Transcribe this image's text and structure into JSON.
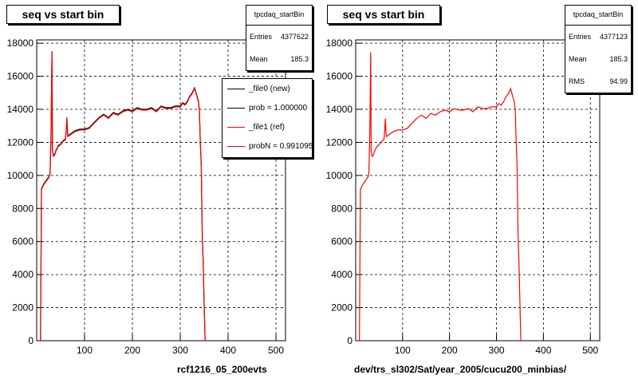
{
  "chart_data": [
    {
      "type": "line",
      "title": "seq vs start bin",
      "xlabel": "rcf1216_05_200evts",
      "ylabel": "",
      "xlim": [
        0,
        520
      ],
      "ylim": [
        0,
        18200
      ],
      "x_ticks": [
        100,
        200,
        300,
        400,
        500
      ],
      "y_ticks": [
        0,
        2000,
        4000,
        6000,
        8000,
        10000,
        12000,
        14000,
        16000,
        18000
      ],
      "grid": true,
      "series": [
        {
          "name": "_file0 (new)",
          "color": "#000000",
          "x": [
            8,
            10,
            15,
            20,
            25,
            28,
            30,
            32,
            33,
            35,
            38,
            40,
            45,
            50,
            55,
            60,
            62,
            63,
            65,
            70,
            75,
            80,
            90,
            100,
            110,
            120,
            130,
            140,
            150,
            160,
            170,
            180,
            190,
            200,
            210,
            220,
            230,
            240,
            250,
            260,
            270,
            280,
            290,
            300,
            305,
            310,
            315,
            320,
            325,
            330,
            335,
            338,
            340,
            342,
            344,
            346,
            348,
            350,
            352
          ],
          "y": [
            0,
            9200,
            9500,
            9700,
            9900,
            10100,
            12600,
            17500,
            11500,
            11200,
            11300,
            11500,
            11800,
            11900,
            12100,
            12200,
            12800,
            13500,
            12400,
            12500,
            12600,
            12700,
            12800,
            12800,
            12900,
            13200,
            13500,
            13700,
            13500,
            13800,
            13700,
            13900,
            14000,
            13900,
            14100,
            14000,
            14000,
            14100,
            13900,
            14200,
            14100,
            14100,
            14200,
            14200,
            14400,
            14300,
            14500,
            14800,
            15000,
            15300,
            14800,
            14500,
            14000,
            12000,
            10600,
            6500,
            4700,
            2200,
            0
          ]
        },
        {
          "name": "_file1 (ref)",
          "color": "#ff0000",
          "x": [
            8,
            10,
            15,
            20,
            25,
            28,
            30,
            32,
            33,
            35,
            38,
            40,
            45,
            50,
            55,
            60,
            62,
            63,
            65,
            70,
            75,
            80,
            90,
            100,
            110,
            120,
            130,
            140,
            150,
            160,
            170,
            180,
            190,
            200,
            210,
            220,
            230,
            240,
            250,
            260,
            270,
            280,
            290,
            300,
            305,
            310,
            315,
            320,
            325,
            330,
            335,
            338,
            340,
            342,
            344,
            346,
            348,
            350,
            352
          ],
          "y": [
            0,
            9150,
            9450,
            9650,
            9850,
            10050,
            12550,
            17450,
            11450,
            11150,
            11250,
            11450,
            11750,
            11850,
            12050,
            12150,
            12750,
            13450,
            12350,
            12450,
            12550,
            12650,
            12750,
            12750,
            12850,
            13150,
            13450,
            13650,
            13450,
            13750,
            13650,
            13850,
            13950,
            13850,
            14050,
            13950,
            13950,
            14050,
            13850,
            14150,
            14050,
            14050,
            14150,
            14150,
            14350,
            14250,
            14450,
            14750,
            14950,
            15250,
            14750,
            14450,
            13950,
            11950,
            10550,
            6450,
            4650,
            2150,
            0
          ]
        }
      ],
      "legend": {
        "position": "top-right",
        "entries": [
          "_file0 (new)",
          "prob = 1.000000",
          "_file1 (ref)",
          "probN = 0.991095"
        ]
      },
      "stats": {
        "name": "tpcdaq_startBin",
        "rows": [
          {
            "label": "Entries",
            "value": "4377622"
          },
          {
            "label": "Mean",
            "value": "185.3"
          }
        ]
      }
    },
    {
      "type": "line",
      "title": "seq vs start bin",
      "xlabel": "dev/trs_sl302/Sat/year_2005/cucu200_minbias/",
      "ylabel": "",
      "xlim": [
        0,
        520
      ],
      "ylim": [
        0,
        18200
      ],
      "x_ticks": [
        100,
        200,
        300,
        400,
        500
      ],
      "y_ticks": [
        0,
        2000,
        4000,
        6000,
        8000,
        10000,
        12000,
        14000,
        16000,
        18000
      ],
      "grid": true,
      "series": [
        {
          "color": "#ff0000",
          "x": [
            8,
            10,
            15,
            20,
            25,
            28,
            30,
            32,
            33,
            35,
            38,
            40,
            45,
            50,
            55,
            60,
            62,
            63,
            65,
            70,
            75,
            80,
            90,
            100,
            110,
            120,
            130,
            140,
            150,
            160,
            170,
            180,
            190,
            200,
            210,
            220,
            230,
            240,
            250,
            260,
            270,
            280,
            290,
            300,
            305,
            310,
            315,
            320,
            325,
            330,
            335,
            338,
            340,
            342,
            344,
            346,
            348,
            350,
            352
          ],
          "y": [
            0,
            9150,
            9450,
            9650,
            9850,
            10050,
            12550,
            17450,
            11450,
            11150,
            11250,
            11450,
            11750,
            11850,
            12050,
            12150,
            12750,
            13450,
            12350,
            12450,
            12550,
            12650,
            12750,
            12750,
            12850,
            13150,
            13450,
            13650,
            13450,
            13750,
            13650,
            13850,
            13950,
            13850,
            14050,
            13950,
            13950,
            14050,
            13850,
            14150,
            14050,
            14050,
            14150,
            14150,
            14350,
            14250,
            14450,
            14750,
            14950,
            15250,
            14750,
            14450,
            13950,
            11950,
            10550,
            6450,
            4650,
            2150,
            0
          ]
        }
      ],
      "stats": {
        "name": "tpcdaq_startBin",
        "rows": [
          {
            "label": "Entries",
            "value": "4377123"
          },
          {
            "label": "Mean",
            "value": "185.3"
          },
          {
            "label": "RMS",
            "value": "94.99"
          }
        ]
      }
    }
  ]
}
